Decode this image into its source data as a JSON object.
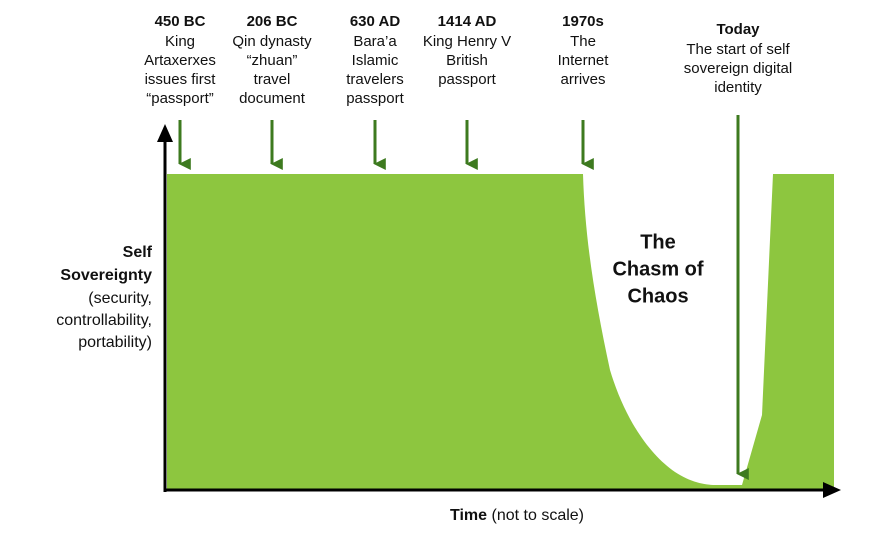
{
  "milestones": [
    {
      "date": "450 BC",
      "lines": [
        "King",
        "Artaxerxes",
        "issues first",
        "“passport”"
      ]
    },
    {
      "date": "206 BC",
      "lines": [
        "Qin dynasty",
        "“zhuan”",
        "travel",
        "document"
      ]
    },
    {
      "date": "630 AD",
      "lines": [
        "Bara’a",
        "Islamic",
        "travelers",
        "passport"
      ]
    },
    {
      "date": "1414 AD",
      "lines": [
        "King Henry V",
        "British",
        "passport"
      ]
    },
    {
      "date": "1970s",
      "lines": [
        "The",
        "Internet",
        "arrives"
      ]
    },
    {
      "date": "Today",
      "lines": [
        "The start of self",
        "sovereign digital",
        "identity"
      ]
    }
  ],
  "y_axis_label": {
    "bold_lines": [
      "Self",
      "Sovereignty"
    ],
    "lines": [
      "(security,",
      "controllability,",
      "portability)"
    ]
  },
  "x_axis_label": {
    "bold": "Time",
    "rest": "(not to scale)"
  },
  "chasm_label": [
    "The",
    "Chasm of",
    "Chaos"
  ]
}
